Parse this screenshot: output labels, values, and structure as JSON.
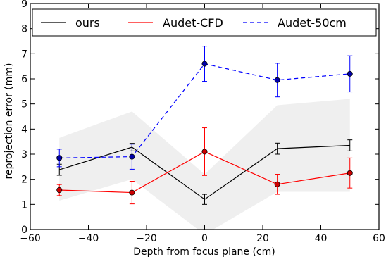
{
  "chart_data": {
    "type": "line",
    "xlabel": "Depth from focus plane (cm)",
    "ylabel": "reprojection error (mm)",
    "xlim": [
      -60,
      60
    ],
    "ylim": [
      0,
      9
    ],
    "x_ticks": [
      "−60",
      "−40",
      "−20",
      "0",
      "20",
      "40",
      "60"
    ],
    "y_ticks": [
      "0",
      "1",
      "2",
      "3",
      "4",
      "5",
      "6",
      "7",
      "8",
      "9"
    ],
    "grid": false,
    "legend_position": "top",
    "shaded_band": {
      "color": "#efefef",
      "x": [
        -50,
        -25,
        0,
        25,
        50
      ],
      "lower": [
        1.15,
        2.0,
        -0.2,
        1.5,
        1.5
      ],
      "upper": [
        3.65,
        4.7,
        2.2,
        4.95,
        5.2
      ]
    },
    "series": [
      {
        "name": "ours",
        "color": "#000000",
        "dash": "solid",
        "marker": "none",
        "x": [
          -50,
          -25,
          0,
          25,
          50
        ],
        "y": [
          2.38,
          3.28,
          1.2,
          3.22,
          3.35
        ],
        "err": [
          0.22,
          0.15,
          0.2,
          0.22,
          0.22
        ]
      },
      {
        "name": "Audet-CFD",
        "color": "#ff0000",
        "dash": "solid",
        "marker": "circle",
        "marker_color": "#cc0000",
        "x": [
          -50,
          -25,
          0,
          25,
          50
        ],
        "y": [
          1.57,
          1.47,
          3.1,
          1.8,
          2.25
        ],
        "err": [
          0.22,
          0.45,
          0.95,
          0.4,
          0.6
        ]
      },
      {
        "name": "Audet-50cm",
        "color": "#0000ff",
        "dash": "dashed",
        "marker": "circle",
        "marker_color": "#0000aa",
        "x": [
          -50,
          -25,
          0,
          25,
          50
        ],
        "y": [
          2.85,
          2.9,
          6.6,
          5.95,
          6.2
        ],
        "err": [
          0.35,
          0.5,
          0.7,
          0.67,
          0.72
        ]
      }
    ]
  }
}
